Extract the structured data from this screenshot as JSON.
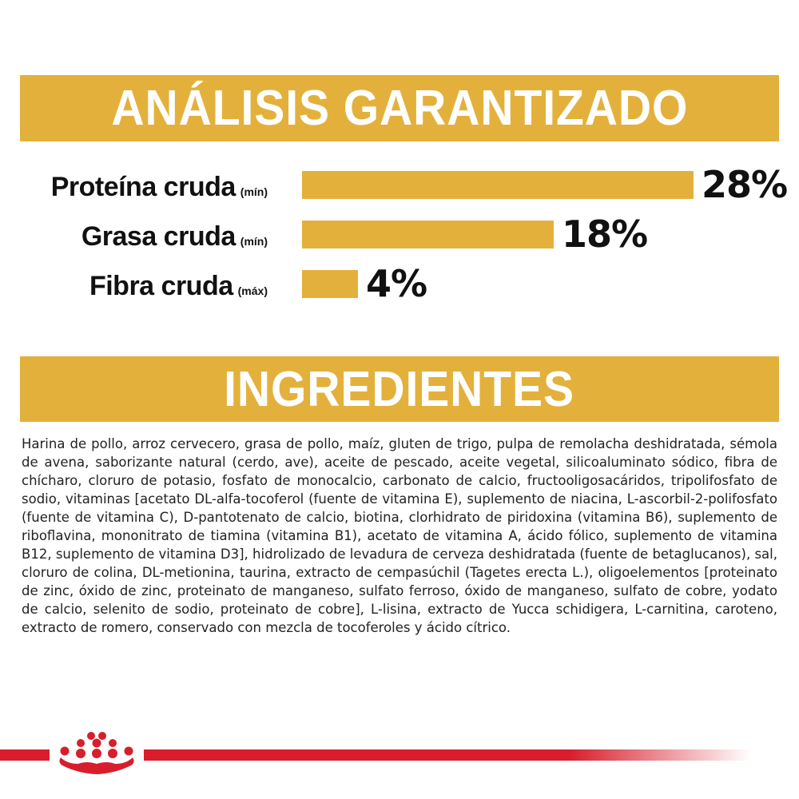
{
  "analysis": {
    "title": "ANÁLISIS GARANTIZADO",
    "rows": [
      {
        "name": "Proteína cruda",
        "qualifier": "(mín)",
        "value": "28%",
        "percent": 28
      },
      {
        "name": "Grasa cruda",
        "qualifier": "(mín)",
        "value": "18%",
        "percent": 18
      },
      {
        "name": "Fibra cruda",
        "qualifier": "(máx)",
        "value": "4%",
        "percent": 4
      }
    ]
  },
  "ingredients": {
    "title": "INGREDIENTES",
    "text": "Harina de pollo, arroz cervecero, grasa de pollo, maíz, gluten de trigo, pulpa de remolacha deshidratada, sémola de avena, saborizante natural (cerdo, ave), aceite de pescado, aceite vegetal, silicoaluminato sódico, fibra de chícharo, cloruro de potasio, fosfato de monocalcio, carbonato de calcio, fructooligosacáridos, tripolifosfato de sodio, vitaminas [acetato DL-alfa-tocoferol (fuente de vitamina E), suplemento de niacina, L-ascorbil-2-polifosfato (fuente de vitamina C), D-pantotenato de calcio, biotina, clorhidrato de piridoxina (vitamina B6), suplemento de riboflavina, mononitrato de tiamina (vitamina B1), acetato de vitamina A, ácido fólico, suplemento de vitamina B12, suplemento de vitamina D3], hidrolizado de levadura de cerveza deshidratada (fuente de betaglucanos), sal, cloruro de colina, DL-metionina, taurina, extracto de cempasúchil (Tagetes erecta L.), oligoelementos [proteinato de zinc, óxido de zinc, proteinato de manganeso, sulfato ferroso, óxido de manganeso, sulfato de cobre, yodato de calcio, selenito de sodio, proteinato de cobre], L-lisina, extracto de Yucca schidigera, L-carnitina, caroteno, extracto de romero, conservado con mezcla de tocoferoles y ácido cítrico."
  },
  "colors": {
    "accent": "#e3b13b",
    "brand_red": "#d81e2c",
    "text": "#111111"
  },
  "footer": {
    "logo_icon": "crown-icon"
  }
}
